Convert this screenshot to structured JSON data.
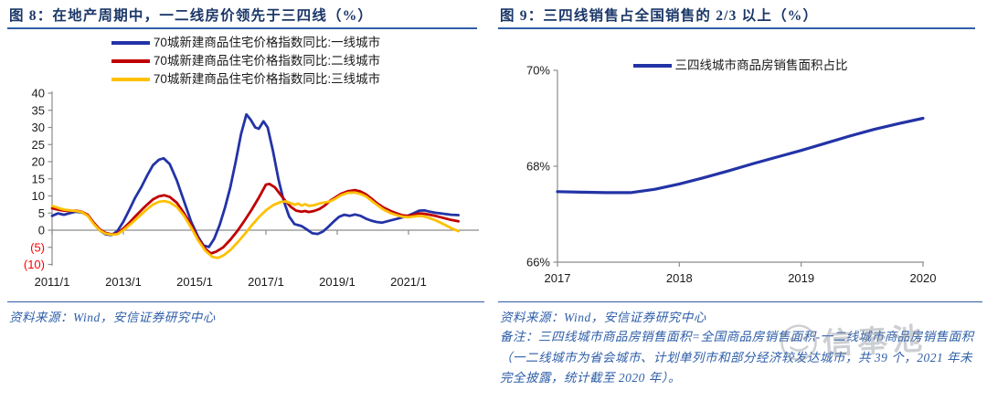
{
  "colors": {
    "title_navy": "#1b3768",
    "rule_blue": "#2e5ea8",
    "source_blue": "#2e5ea8",
    "line_blue": "#2333a6",
    "line_red": "#c00000",
    "line_yellow": "#ffc000",
    "axis_gray": "#8c8c8c",
    "negative_tick_red": "#ff0000"
  },
  "left_panel": {
    "title": "图 8：在地产周期中，一二线房价领先于三四线（%）",
    "source": "资料来源：Wind，安信证券研究中心"
  },
  "right_panel": {
    "title": "图 9：三四线销售占全国销售的 2/3 以上（%）",
    "source": "资料来源：Wind，安信证券研究中心",
    "note": "备注：三四线城市商品房销售面积=全国商品房销售面积-一二线城市商品房销售面积（一二线城市为省会城市、计划单列市和部分经济较发达城市，共 39 个，2021 年未完全披露，统计截至 2020 年）。"
  },
  "watermark": {
    "text": "信奉池"
  },
  "chart_data": [
    {
      "type": "line",
      "title": "在地产周期中，一二线房价领先于三四线（%）",
      "xlabel": "",
      "ylabel": "",
      "ylim": [
        -10,
        40
      ],
      "xlim": [
        2011,
        2022.9
      ],
      "grid": false,
      "legend_position": "top-center",
      "y_axis": {
        "ticks": [
          {
            "value": 40,
            "label": "40"
          },
          {
            "value": 35,
            "label": "35"
          },
          {
            "value": 30,
            "label": "30"
          },
          {
            "value": 25,
            "label": "25"
          },
          {
            "value": 20,
            "label": "20"
          },
          {
            "value": 15,
            "label": "15"
          },
          {
            "value": 10,
            "label": "10"
          },
          {
            "value": 5,
            "label": "5"
          },
          {
            "value": 0,
            "label": "0"
          },
          {
            "value": -5,
            "label": "(5)"
          },
          {
            "value": -10,
            "label": "(10)"
          }
        ]
      },
      "x_axis": {
        "ticks": [
          {
            "value": 2011,
            "label": "2011/1"
          },
          {
            "value": 2013,
            "label": "2013/1"
          },
          {
            "value": 2015,
            "label": "2015/1"
          },
          {
            "value": 2017,
            "label": "2017/1"
          },
          {
            "value": 2019,
            "label": "2019/1"
          },
          {
            "value": 2021,
            "label": "2021/1"
          }
        ]
      },
      "series": [
        {
          "name": "70城新建商品住宅价格指数同比:一线城市",
          "color": "#2333a6",
          "points": [
            [
              2011.0,
              4.2
            ],
            [
              2011.17,
              4.9
            ],
            [
              2011.33,
              4.5
            ],
            [
              2011.5,
              5.0
            ],
            [
              2011.67,
              5.4
            ],
            [
              2011.83,
              5.2
            ],
            [
              2012.0,
              4.3
            ],
            [
              2012.17,
              2.0
            ],
            [
              2012.33,
              0.0
            ],
            [
              2012.5,
              -1.2
            ],
            [
              2012.67,
              -1.4
            ],
            [
              2012.83,
              -0.3
            ],
            [
              2013.0,
              2.5
            ],
            [
              2013.17,
              6.0
            ],
            [
              2013.33,
              9.5
            ],
            [
              2013.5,
              12.5
            ],
            [
              2013.67,
              16.0
            ],
            [
              2013.83,
              19.0
            ],
            [
              2014.0,
              20.6
            ],
            [
              2014.13,
              21.0
            ],
            [
              2014.3,
              19.3
            ],
            [
              2014.5,
              14.5
            ],
            [
              2014.7,
              8.5
            ],
            [
              2014.9,
              2.5
            ],
            [
              2015.1,
              -2.0
            ],
            [
              2015.25,
              -4.5
            ],
            [
              2015.4,
              -4.9
            ],
            [
              2015.55,
              -2.5
            ],
            [
              2015.7,
              1.5
            ],
            [
              2015.85,
              6.5
            ],
            [
              2016.0,
              12.5
            ],
            [
              2016.15,
              20.0
            ],
            [
              2016.3,
              28.0
            ],
            [
              2016.45,
              33.8
            ],
            [
              2016.57,
              32.3
            ],
            [
              2016.7,
              30.0
            ],
            [
              2016.8,
              29.6
            ],
            [
              2016.93,
              31.8
            ],
            [
              2017.05,
              30.0
            ],
            [
              2017.2,
              23.0
            ],
            [
              2017.35,
              15.0
            ],
            [
              2017.5,
              8.5
            ],
            [
              2017.65,
              4.0
            ],
            [
              2017.8,
              1.8
            ],
            [
              2018.0,
              1.2
            ],
            [
              2018.15,
              0.2
            ],
            [
              2018.3,
              -0.9
            ],
            [
              2018.45,
              -1.1
            ],
            [
              2018.6,
              -0.4
            ],
            [
              2018.75,
              1.0
            ],
            [
              2018.9,
              2.5
            ],
            [
              2019.05,
              3.9
            ],
            [
              2019.2,
              4.5
            ],
            [
              2019.35,
              4.2
            ],
            [
              2019.5,
              4.6
            ],
            [
              2019.65,
              4.2
            ],
            [
              2019.8,
              3.4
            ],
            [
              2019.95,
              2.8
            ],
            [
              2020.1,
              2.4
            ],
            [
              2020.25,
              2.2
            ],
            [
              2020.4,
              2.6
            ],
            [
              2020.55,
              3.0
            ],
            [
              2020.7,
              3.4
            ],
            [
              2020.85,
              3.8
            ],
            [
              2021.0,
              4.3
            ],
            [
              2021.15,
              5.0
            ],
            [
              2021.3,
              5.7
            ],
            [
              2021.45,
              5.8
            ],
            [
              2021.6,
              5.4
            ],
            [
              2021.75,
              5.1
            ],
            [
              2021.9,
              4.9
            ],
            [
              2022.05,
              4.7
            ],
            [
              2022.2,
              4.5
            ],
            [
              2022.4,
              4.4
            ]
          ]
        },
        {
          "name": "70城新建商品住宅价格指数同比:二线城市",
          "color": "#c00000",
          "points": [
            [
              2011.0,
              6.4
            ],
            [
              2011.17,
              6.0
            ],
            [
              2011.33,
              5.7
            ],
            [
              2011.5,
              5.6
            ],
            [
              2011.67,
              5.7
            ],
            [
              2011.83,
              5.4
            ],
            [
              2012.0,
              4.5
            ],
            [
              2012.17,
              2.2
            ],
            [
              2012.33,
              0.3
            ],
            [
              2012.5,
              -0.8
            ],
            [
              2012.67,
              -1.2
            ],
            [
              2012.83,
              -1.0
            ],
            [
              2013.0,
              0.5
            ],
            [
              2013.17,
              2.2
            ],
            [
              2013.33,
              4.0
            ],
            [
              2013.5,
              5.8
            ],
            [
              2013.67,
              7.5
            ],
            [
              2013.83,
              9.0
            ],
            [
              2014.0,
              9.9
            ],
            [
              2014.15,
              10.2
            ],
            [
              2014.3,
              9.7
            ],
            [
              2014.5,
              8.0
            ],
            [
              2014.7,
              5.0
            ],
            [
              2014.9,
              1.5
            ],
            [
              2015.1,
              -2.5
            ],
            [
              2015.3,
              -5.5
            ],
            [
              2015.45,
              -6.8
            ],
            [
              2015.6,
              -6.3
            ],
            [
              2015.8,
              -5.0
            ],
            [
              2016.0,
              -2.8
            ],
            [
              2016.2,
              -0.2
            ],
            [
              2016.4,
              2.8
            ],
            [
              2016.6,
              6.0
            ],
            [
              2016.8,
              9.5
            ],
            [
              2017.0,
              13.3
            ],
            [
              2017.1,
              13.5
            ],
            [
              2017.25,
              12.5
            ],
            [
              2017.4,
              10.5
            ],
            [
              2017.55,
              8.5
            ],
            [
              2017.7,
              6.8
            ],
            [
              2017.85,
              5.7
            ],
            [
              2018.0,
              5.4
            ],
            [
              2018.1,
              5.6
            ],
            [
              2018.2,
              5.3
            ],
            [
              2018.35,
              5.6
            ],
            [
              2018.5,
              6.2
            ],
            [
              2018.65,
              7.2
            ],
            [
              2018.8,
              8.6
            ],
            [
              2018.95,
              9.6
            ],
            [
              2019.1,
              10.6
            ],
            [
              2019.3,
              11.4
            ],
            [
              2019.5,
              11.7
            ],
            [
              2019.65,
              11.3
            ],
            [
              2019.8,
              10.5
            ],
            [
              2019.95,
              9.3
            ],
            [
              2020.1,
              8.0
            ],
            [
              2020.3,
              6.6
            ],
            [
              2020.5,
              5.6
            ],
            [
              2020.7,
              4.8
            ],
            [
              2020.85,
              4.3
            ],
            [
              2021.0,
              4.2
            ],
            [
              2021.15,
              4.5
            ],
            [
              2021.3,
              4.9
            ],
            [
              2021.45,
              4.8
            ],
            [
              2021.6,
              4.5
            ],
            [
              2021.75,
              4.2
            ],
            [
              2021.9,
              3.8
            ],
            [
              2022.05,
              3.4
            ],
            [
              2022.2,
              3.0
            ],
            [
              2022.4,
              2.6
            ]
          ]
        },
        {
          "name": "70城新建商品住宅价格指数同比:三线城市",
          "color": "#ffc000",
          "points": [
            [
              2011.0,
              7.1
            ],
            [
              2011.17,
              6.5
            ],
            [
              2011.33,
              6.0
            ],
            [
              2011.5,
              5.8
            ],
            [
              2011.67,
              5.6
            ],
            [
              2011.83,
              5.3
            ],
            [
              2012.0,
              4.2
            ],
            [
              2012.17,
              1.8
            ],
            [
              2012.33,
              0.0
            ],
            [
              2012.5,
              -1.0
            ],
            [
              2012.67,
              -1.3
            ],
            [
              2012.83,
              -1.2
            ],
            [
              2013.0,
              0.0
            ],
            [
              2013.17,
              1.5
            ],
            [
              2013.33,
              3.0
            ],
            [
              2013.5,
              4.6
            ],
            [
              2013.67,
              6.2
            ],
            [
              2013.83,
              7.5
            ],
            [
              2014.0,
              8.3
            ],
            [
              2014.15,
              8.5
            ],
            [
              2014.3,
              8.1
            ],
            [
              2014.5,
              6.8
            ],
            [
              2014.7,
              4.2
            ],
            [
              2014.9,
              0.8
            ],
            [
              2015.1,
              -3.0
            ],
            [
              2015.3,
              -6.0
            ],
            [
              2015.5,
              -7.8
            ],
            [
              2015.65,
              -8.1
            ],
            [
              2015.8,
              -7.4
            ],
            [
              2016.0,
              -5.8
            ],
            [
              2016.2,
              -3.6
            ],
            [
              2016.4,
              -1.2
            ],
            [
              2016.6,
              1.4
            ],
            [
              2016.8,
              3.8
            ],
            [
              2017.0,
              5.8
            ],
            [
              2017.2,
              7.3
            ],
            [
              2017.4,
              8.2
            ],
            [
              2017.55,
              8.4
            ],
            [
              2017.7,
              7.9
            ],
            [
              2017.8,
              7.4
            ],
            [
              2017.9,
              7.8
            ],
            [
              2018.0,
              7.2
            ],
            [
              2018.1,
              7.6
            ],
            [
              2018.2,
              7.1
            ],
            [
              2018.35,
              7.3
            ],
            [
              2018.5,
              7.8
            ],
            [
              2018.65,
              8.1
            ],
            [
              2018.8,
              8.4
            ],
            [
              2018.95,
              9.2
            ],
            [
              2019.1,
              10.2
            ],
            [
              2019.3,
              10.9
            ],
            [
              2019.5,
              11.0
            ],
            [
              2019.65,
              10.6
            ],
            [
              2019.8,
              9.9
            ],
            [
              2019.95,
              8.7
            ],
            [
              2020.1,
              7.5
            ],
            [
              2020.3,
              6.0
            ],
            [
              2020.5,
              5.0
            ],
            [
              2020.7,
              4.3
            ],
            [
              2020.85,
              3.9
            ],
            [
              2021.0,
              3.8
            ],
            [
              2021.15,
              4.0
            ],
            [
              2021.3,
              4.2
            ],
            [
              2021.45,
              4.0
            ],
            [
              2021.6,
              3.5
            ],
            [
              2021.75,
              2.9
            ],
            [
              2021.9,
              2.2
            ],
            [
              2022.05,
              1.4
            ],
            [
              2022.2,
              0.6
            ],
            [
              2022.4,
              -0.3
            ]
          ]
        }
      ]
    },
    {
      "type": "line",
      "title": "三四线销售占全国销售的 2/3 以上（%）",
      "xlabel": "",
      "ylabel": "",
      "ylim": [
        66,
        70
      ],
      "xlim": [
        2017,
        2020
      ],
      "grid": false,
      "legend_position": "top-center",
      "y_axis": {
        "ticks": [
          {
            "value": 70,
            "label": "70%"
          },
          {
            "value": 68,
            "label": "68%"
          },
          {
            "value": 66,
            "label": "66%"
          }
        ]
      },
      "x_axis": {
        "ticks": [
          {
            "value": 2017,
            "label": "2017"
          },
          {
            "value": 2018,
            "label": "2018"
          },
          {
            "value": 2019,
            "label": "2019"
          },
          {
            "value": 2020,
            "label": "2020"
          }
        ]
      },
      "series": [
        {
          "name": "三四线城市商品房销售面积占比",
          "color": "#2333a6",
          "points": [
            [
              2017.0,
              67.47
            ],
            [
              2017.2,
              67.46
            ],
            [
              2017.4,
              67.45
            ],
            [
              2017.6,
              67.45
            ],
            [
              2017.8,
              67.52
            ],
            [
              2018.0,
              67.63
            ],
            [
              2018.2,
              67.76
            ],
            [
              2018.4,
              67.9
            ],
            [
              2018.6,
              68.05
            ],
            [
              2018.8,
              68.19
            ],
            [
              2019.0,
              68.33
            ],
            [
              2019.2,
              68.48
            ],
            [
              2019.4,
              68.63
            ],
            [
              2019.6,
              68.77
            ],
            [
              2019.8,
              68.89
            ],
            [
              2020.0,
              69.0
            ]
          ]
        }
      ]
    }
  ]
}
